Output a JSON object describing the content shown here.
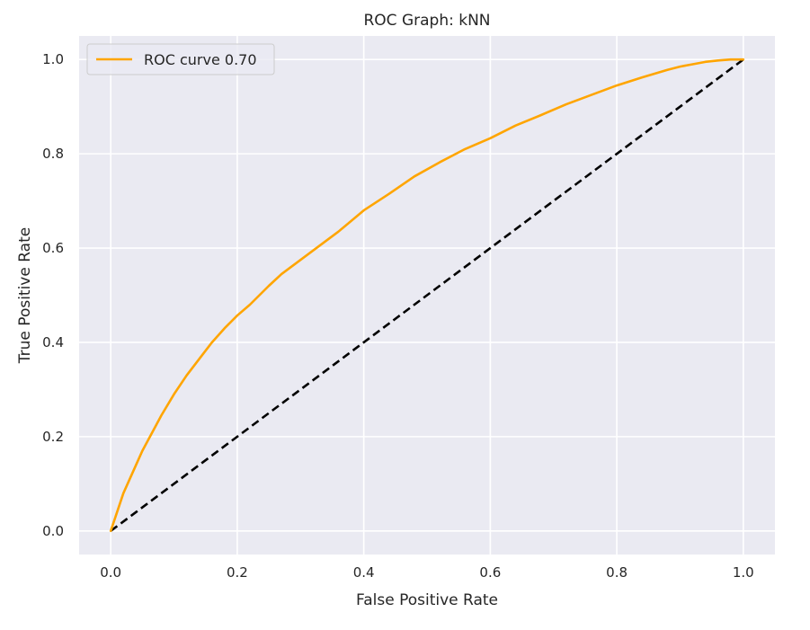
{
  "chart_data": {
    "type": "line",
    "title": "ROC Graph: kNN",
    "xlabel": "False Positive Rate",
    "ylabel": "True Positive Rate",
    "xlim": [
      -0.05,
      1.05
    ],
    "ylim": [
      -0.05,
      1.05
    ],
    "xticks": [
      0.0,
      0.2,
      0.4,
      0.6,
      0.8,
      1.0
    ],
    "yticks": [
      0.0,
      0.2,
      0.4,
      0.6,
      0.8,
      1.0
    ],
    "xtick_labels": [
      "0.0",
      "0.2",
      "0.4",
      "0.6",
      "0.8",
      "1.0"
    ],
    "ytick_labels": [
      "0.0",
      "0.2",
      "0.4",
      "0.6",
      "0.8",
      "1.0"
    ],
    "grid": true,
    "legend_position": "top-left",
    "series": [
      {
        "name": "ROC curve 0.70",
        "color": "#ffa500",
        "style": "solid",
        "x": [
          0.0,
          0.005,
          0.01,
          0.02,
          0.03,
          0.04,
          0.05,
          0.06,
          0.07,
          0.08,
          0.1,
          0.12,
          0.14,
          0.16,
          0.18,
          0.2,
          0.22,
          0.25,
          0.27,
          0.3,
          0.33,
          0.36,
          0.4,
          0.44,
          0.48,
          0.52,
          0.56,
          0.6,
          0.64,
          0.68,
          0.72,
          0.76,
          0.8,
          0.84,
          0.88,
          0.9,
          0.92,
          0.94,
          0.96,
          0.98,
          1.0
        ],
        "y": [
          0.0,
          0.02,
          0.04,
          0.08,
          0.11,
          0.14,
          0.17,
          0.195,
          0.22,
          0.245,
          0.29,
          0.33,
          0.365,
          0.4,
          0.43,
          0.457,
          0.48,
          0.52,
          0.545,
          0.575,
          0.605,
          0.635,
          0.68,
          0.715,
          0.752,
          0.782,
          0.81,
          0.833,
          0.86,
          0.882,
          0.905,
          0.925,
          0.945,
          0.962,
          0.978,
          0.985,
          0.99,
          0.995,
          0.998,
          1.0,
          1.0
        ]
      },
      {
        "name": "",
        "color": "#000000",
        "style": "dashed",
        "x": [
          0.0,
          1.0
        ],
        "y": [
          0.0,
          1.0
        ]
      }
    ]
  }
}
